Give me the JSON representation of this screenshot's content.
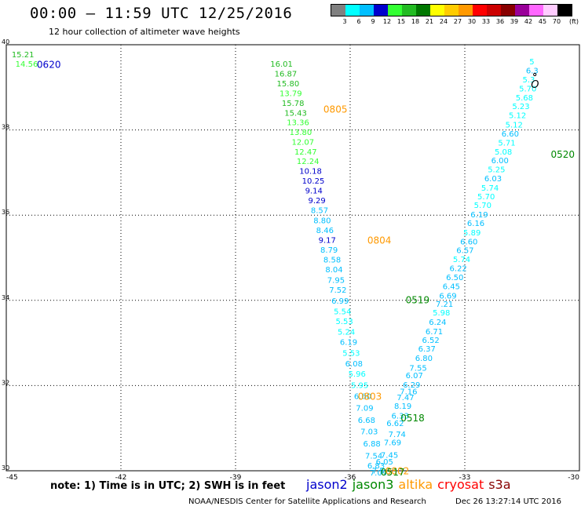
{
  "header": {
    "title": "00:00 – 11:59 UTC 12/25/2016",
    "subtitle": "12 hour collection of altimeter wave heights"
  },
  "colorbar": {
    "unit_label": "(ft)",
    "colors": [
      "#808080",
      "#00ffff",
      "#00bfff",
      "#0000cc",
      "#33ff33",
      "#22bb22",
      "#007700",
      "#ffff00",
      "#ffcc00",
      "#ff9900",
      "#ff0000",
      "#cc0000",
      "#880000",
      "#990099",
      "#ff66ff",
      "#ffccff",
      "#000000"
    ],
    "tick_labels": [
      "3",
      "6",
      "9",
      "12",
      "15",
      "18",
      "21",
      "24",
      "27",
      "30",
      "33",
      "36",
      "39",
      "42",
      "45",
      "70"
    ]
  },
  "note": "note: 1) Time is in UTC; 2) SWH is in feet",
  "legend": [
    {
      "label": "jason2",
      "color": "#0000cc"
    },
    {
      "label": "jason3",
      "color": "#008800"
    },
    {
      "label": "altika",
      "color": "#ff9900"
    },
    {
      "label": "cryosat",
      "color": "#ff0000"
    },
    {
      "label": "s3a",
      "color": "#880000"
    }
  ],
  "credit": "NOAA/NESDIS Center for Satellite Applications and Research",
  "timestamp": "Dec 26 13:27:14 UTC 2016",
  "chart_data": {
    "type": "scatter",
    "xlim": [
      -45,
      -30
    ],
    "ylim": [
      30,
      40
    ],
    "x_ticks": [
      -45,
      -42,
      -39,
      -36,
      -33,
      -30
    ],
    "x_tick_labels": [
      "-45",
      "-42",
      "-39",
      "-36",
      "-33",
      "-30"
    ],
    "y_ticks": [
      30,
      32,
      34,
      36,
      38,
      40
    ],
    "y_tick_labels": [
      "30",
      "32",
      "34",
      "36",
      "38",
      "40"
    ],
    "grid": true,
    "thresholds": [
      3,
      6,
      9,
      12,
      15,
      18,
      21,
      24,
      27,
      30,
      33,
      36,
      39,
      42,
      45,
      70
    ],
    "points": [
      {
        "x": -44.86,
        "y": 39.78,
        "v": "15.21"
      },
      {
        "x": -44.76,
        "y": 39.56,
        "v": "14.56"
      },
      {
        "x": -38.09,
        "y": 39.56,
        "v": "16.01"
      },
      {
        "x": -37.98,
        "y": 39.33,
        "v": "16.87"
      },
      {
        "x": -37.92,
        "y": 39.1,
        "v": "15.80"
      },
      {
        "x": -37.85,
        "y": 38.87,
        "v": "13.79"
      },
      {
        "x": -37.79,
        "y": 38.64,
        "v": "15.78"
      },
      {
        "x": -37.72,
        "y": 38.41,
        "v": "15.43"
      },
      {
        "x": -37.66,
        "y": 38.19,
        "v": "13.36"
      },
      {
        "x": -37.59,
        "y": 37.96,
        "v": "13.80"
      },
      {
        "x": -37.53,
        "y": 37.73,
        "v": "12.07"
      },
      {
        "x": -37.46,
        "y": 37.5,
        "v": "12.47"
      },
      {
        "x": -37.4,
        "y": 37.27,
        "v": "12.24"
      },
      {
        "x": -37.33,
        "y": 37.04,
        "v": "10.18"
      },
      {
        "x": -37.26,
        "y": 36.81,
        "v": "10.25"
      },
      {
        "x": -37.18,
        "y": 36.58,
        "v": "9.14"
      },
      {
        "x": -37.1,
        "y": 36.35,
        "v": "9.29"
      },
      {
        "x": -37.03,
        "y": 36.12,
        "v": "8.57"
      },
      {
        "x": -36.96,
        "y": 35.88,
        "v": "8.80"
      },
      {
        "x": -36.89,
        "y": 35.65,
        "v": "8.46"
      },
      {
        "x": -36.83,
        "y": 35.42,
        "v": "9.17"
      },
      {
        "x": -36.78,
        "y": 35.19,
        "v": "8.79"
      },
      {
        "x": -36.7,
        "y": 34.96,
        "v": "8.58"
      },
      {
        "x": -36.65,
        "y": 34.73,
        "v": "8.04"
      },
      {
        "x": -36.6,
        "y": 34.48,
        "v": "7.95"
      },
      {
        "x": -36.55,
        "y": 34.25,
        "v": "7.52"
      },
      {
        "x": -36.49,
        "y": 34.0,
        "v": "6.99"
      },
      {
        "x": -36.43,
        "y": 33.75,
        "v": "5.54"
      },
      {
        "x": -36.38,
        "y": 33.52,
        "v": "5.53"
      },
      {
        "x": -36.33,
        "y": 33.27,
        "v": "5.24"
      },
      {
        "x": -36.27,
        "y": 33.03,
        "v": "6.19"
      },
      {
        "x": -36.2,
        "y": 32.77,
        "v": "5.53"
      },
      {
        "x": -36.13,
        "y": 32.52,
        "v": "6.08"
      },
      {
        "x": -36.05,
        "y": 32.28,
        "v": "5.96"
      },
      {
        "x": -35.98,
        "y": 32.02,
        "v": "5.95"
      },
      {
        "x": -35.9,
        "y": 31.76,
        "v": "6.60"
      },
      {
        "x": -35.85,
        "y": 31.48,
        "v": "7.09"
      },
      {
        "x": -35.8,
        "y": 31.2,
        "v": "6.68"
      },
      {
        "x": -35.73,
        "y": 30.93,
        "v": "7.03"
      },
      {
        "x": -35.66,
        "y": 30.64,
        "v": "6.88"
      },
      {
        "x": -35.61,
        "y": 30.36,
        "v": "7.54"
      },
      {
        "x": -35.55,
        "y": 30.13,
        "v": "6.83"
      },
      {
        "x": -35.49,
        "y": 29.96,
        "v": "7.09"
      },
      {
        "x": -35.43,
        "y": 30.01,
        "v": "7.5"
      },
      {
        "x": -35.33,
        "y": 30.22,
        "v": "6.05"
      },
      {
        "x": -35.2,
        "y": 30.38,
        "v": "7.45"
      },
      {
        "x": -35.12,
        "y": 30.67,
        "v": "7.69"
      },
      {
        "x": -35.05,
        "y": 31.12,
        "v": "6.62"
      },
      {
        "x": -35.0,
        "y": 30.87,
        "v": "7.74"
      },
      {
        "x": -34.92,
        "y": 31.3,
        "v": "6.33"
      },
      {
        "x": -34.85,
        "y": 31.53,
        "v": "8.19"
      },
      {
        "x": -34.78,
        "y": 31.73,
        "v": "7.47"
      },
      {
        "x": -34.7,
        "y": 31.87,
        "v": "7.16"
      },
      {
        "x": -34.62,
        "y": 32.03,
        "v": "6.29"
      },
      {
        "x": -34.55,
        "y": 32.25,
        "v": "6.07"
      },
      {
        "x": -34.45,
        "y": 32.42,
        "v": "7.55"
      },
      {
        "x": -34.3,
        "y": 32.65,
        "v": "6.80"
      },
      {
        "x": -34.22,
        "y": 32.87,
        "v": "6.37"
      },
      {
        "x": -34.12,
        "y": 33.08,
        "v": "6.52"
      },
      {
        "x": -34.03,
        "y": 33.28,
        "v": "6.71"
      },
      {
        "x": -33.94,
        "y": 33.5,
        "v": "6.24"
      },
      {
        "x": -33.84,
        "y": 33.72,
        "v": "5.98"
      },
      {
        "x": -33.76,
        "y": 33.92,
        "v": "7.21"
      },
      {
        "x": -33.67,
        "y": 34.12,
        "v": "6.69"
      },
      {
        "x": -33.58,
        "y": 34.34,
        "v": "6.45"
      },
      {
        "x": -33.49,
        "y": 34.55,
        "v": "6.50"
      },
      {
        "x": -33.4,
        "y": 34.76,
        "v": "6.22"
      },
      {
        "x": -33.31,
        "y": 34.97,
        "v": "5.74"
      },
      {
        "x": -33.22,
        "y": 35.18,
        "v": "6.57"
      },
      {
        "x": -33.12,
        "y": 35.39,
        "v": "6.60"
      },
      {
        "x": -33.04,
        "y": 35.6,
        "v": "5.89"
      },
      {
        "x": -32.94,
        "y": 35.82,
        "v": "6.16"
      },
      {
        "x": -32.85,
        "y": 36.02,
        "v": "6.19"
      },
      {
        "x": -32.76,
        "y": 36.24,
        "v": "5.70"
      },
      {
        "x": -32.67,
        "y": 36.45,
        "v": "5.70"
      },
      {
        "x": -32.57,
        "y": 36.65,
        "v": "5.74"
      },
      {
        "x": -32.49,
        "y": 36.87,
        "v": "6.03"
      },
      {
        "x": -32.4,
        "y": 37.08,
        "v": "5.25"
      },
      {
        "x": -32.31,
        "y": 37.29,
        "v": "6.00"
      },
      {
        "x": -32.22,
        "y": 37.5,
        "v": "5.08"
      },
      {
        "x": -32.13,
        "y": 37.71,
        "v": "5.71"
      },
      {
        "x": -32.04,
        "y": 37.92,
        "v": "6.60"
      },
      {
        "x": -31.94,
        "y": 38.13,
        "v": "5.12"
      },
      {
        "x": -31.85,
        "y": 38.35,
        "v": "5.12"
      },
      {
        "x": -31.76,
        "y": 38.56,
        "v": "5.23"
      },
      {
        "x": -31.67,
        "y": 38.77,
        "v": "5.68"
      },
      {
        "x": -31.58,
        "y": 38.98,
        "v": "5.70"
      },
      {
        "x": -31.49,
        "y": 39.19,
        "v": "5.3"
      },
      {
        "x": -31.4,
        "y": 39.4,
        "v": "6.3"
      },
      {
        "x": -31.31,
        "y": 39.61,
        "v": "5"
      }
    ],
    "time_labels": [
      {
        "x": -44.2,
        "y": 39.55,
        "label": "0620",
        "satellite": "jason2"
      },
      {
        "x": -36.7,
        "y": 38.5,
        "label": "0805",
        "satellite": "altika"
      },
      {
        "x": -35.55,
        "y": 35.42,
        "label": "0804",
        "satellite": "altika"
      },
      {
        "x": -34.55,
        "y": 34.02,
        "label": "0519",
        "satellite": "jason3"
      },
      {
        "x": -30.75,
        "y": 37.44,
        "label": "0520",
        "satellite": "jason3"
      },
      {
        "x": -35.8,
        "y": 31.76,
        "label": "0803",
        "satellite": "altika"
      },
      {
        "x": -34.68,
        "y": 31.25,
        "label": "0518",
        "satellite": "jason3"
      },
      {
        "x": -35.08,
        "y": 30.01,
        "label": "0802",
        "satellite": "altika"
      },
      {
        "x": -35.2,
        "y": 29.98,
        "label": "0517",
        "satellite": "jason3"
      }
    ],
    "marker_symbol": "O",
    "marker_symbol_x": -31.27,
    "marker_symbol_y": 39.08
  }
}
